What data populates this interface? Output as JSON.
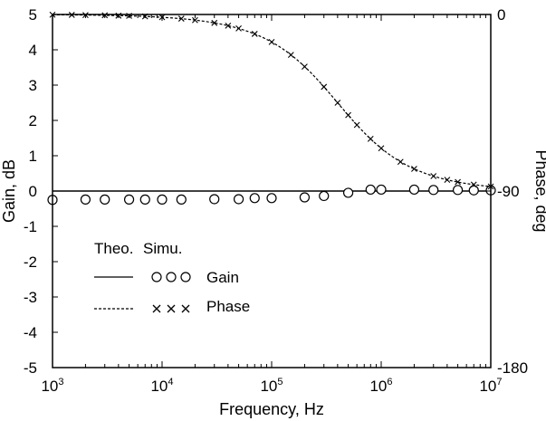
{
  "chart_data": {
    "type": "line",
    "xlabel": "Frequency, Hz",
    "ylabel_left": "Gain, dB",
    "ylabel_right": "Phase, deg",
    "x_scale": "log",
    "xlim": [
      1000,
      10000000
    ],
    "ylim_left": [
      -5,
      5
    ],
    "ylim_right": [
      -180,
      0
    ],
    "x_ticks": [
      {
        "base": "10",
        "exp": "3",
        "value": 1000
      },
      {
        "base": "10",
        "exp": "4",
        "value": 10000
      },
      {
        "base": "10",
        "exp": "5",
        "value": 100000
      },
      {
        "base": "10",
        "exp": "6",
        "value": 1000000
      },
      {
        "base": "10",
        "exp": "7",
        "value": 10000000
      }
    ],
    "y_ticks_left": [
      "5",
      "4",
      "3",
      "2",
      "1",
      "0",
      "-1",
      "-2",
      "-3",
      "-4",
      "-5"
    ],
    "y_ticks_right": [
      "0",
      "-90",
      "-180"
    ],
    "legend": {
      "header_theo": "Theo.",
      "header_simu": "Simu.",
      "gain_label": "Gain",
      "phase_label": "Phase",
      "position": "lower-left"
    },
    "series": [
      {
        "name": "Gain",
        "kind": "theoretical",
        "axis": "left",
        "style": "solid",
        "x": [
          1000,
          10000000
        ],
        "y": [
          0,
          0
        ]
      },
      {
        "name": "Phase",
        "kind": "theoretical",
        "axis": "right",
        "style": "dashed",
        "corner_frequency": 400000
      },
      {
        "name": "Gain",
        "kind": "simulated",
        "axis": "left",
        "marker": "circle",
        "x": [
          1000,
          2000,
          3000,
          5000,
          7000,
          10000,
          15000,
          30000,
          50000,
          70000,
          100000,
          200000,
          300000,
          500000,
          800000,
          1000000,
          2000000,
          3000000,
          5000000,
          7000000,
          10000000
        ],
        "y": [
          -0.25,
          -0.24,
          -0.24,
          -0.24,
          -0.24,
          -0.24,
          -0.24,
          -0.23,
          -0.23,
          -0.2,
          -0.2,
          -0.18,
          -0.14,
          -0.05,
          0.04,
          0.04,
          0.04,
          0.03,
          0.03,
          0.02,
          0.02
        ]
      },
      {
        "name": "Phase",
        "kind": "simulated",
        "axis": "right",
        "marker": "x",
        "x": [
          1000,
          1500,
          2000,
          3000,
          4000,
          5000,
          7000,
          10000,
          15000,
          20000,
          30000,
          40000,
          50000,
          70000,
          100000,
          150000,
          200000,
          300000,
          400000,
          500000,
          600000,
          800000,
          1000000,
          1500000,
          2000000,
          3000000,
          4000000,
          5000000,
          7000000,
          10000000
        ],
        "y": [
          -0.1,
          -0.2,
          -0.3,
          -0.4,
          -0.6,
          -0.7,
          -1,
          -1.4,
          -2.1,
          -2.9,
          -4.3,
          -5.7,
          -7.1,
          -9.9,
          -14,
          -20.6,
          -26.6,
          -36.9,
          -45,
          -51.3,
          -56.3,
          -63.4,
          -68.2,
          -75.1,
          -78.7,
          -82.4,
          -84.3,
          -85.4,
          -86.7,
          -87.7
        ]
      }
    ]
  }
}
